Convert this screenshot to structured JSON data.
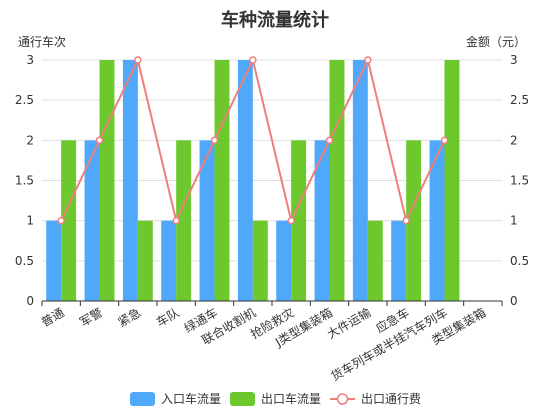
{
  "chart_data": {
    "type": "bar",
    "title": "车种流量统计",
    "ylabel_left": "通行车次",
    "ylabel_right": "金额（元）",
    "ylim_left": [
      0,
      3
    ],
    "ylim_right": [
      0,
      3
    ],
    "yticks": [
      "0",
      "0.5",
      "1",
      "1.5",
      "2",
      "2.5",
      "3"
    ],
    "grid": true,
    "legend_position": "bottom",
    "categories": [
      "普通",
      "军警",
      "紧急",
      "车队",
      "绿通车",
      "联合收割机",
      "抢险救灾",
      "J类型集装箱",
      "大件运输",
      "应急车",
      "货车列车或半挂汽车列车",
      "类型集装箱"
    ],
    "series": [
      {
        "name": "入口车流量",
        "type": "bar",
        "axis": "left",
        "color": "#4fa8f9",
        "values": [
          1,
          2,
          3,
          1,
          2,
          3,
          1,
          2,
          3,
          1,
          2,
          null
        ]
      },
      {
        "name": "出口车流量",
        "type": "bar",
        "axis": "left",
        "color": "#6dc82d",
        "values": [
          2,
          3,
          1,
          2,
          3,
          1,
          2,
          3,
          1,
          2,
          3,
          null
        ]
      },
      {
        "name": "出口通行费",
        "type": "line",
        "axis": "right",
        "color": "#ee7f7b",
        "values": [
          1,
          2,
          3,
          1,
          2,
          3,
          1,
          2,
          3,
          1,
          2,
          null
        ]
      }
    ]
  }
}
